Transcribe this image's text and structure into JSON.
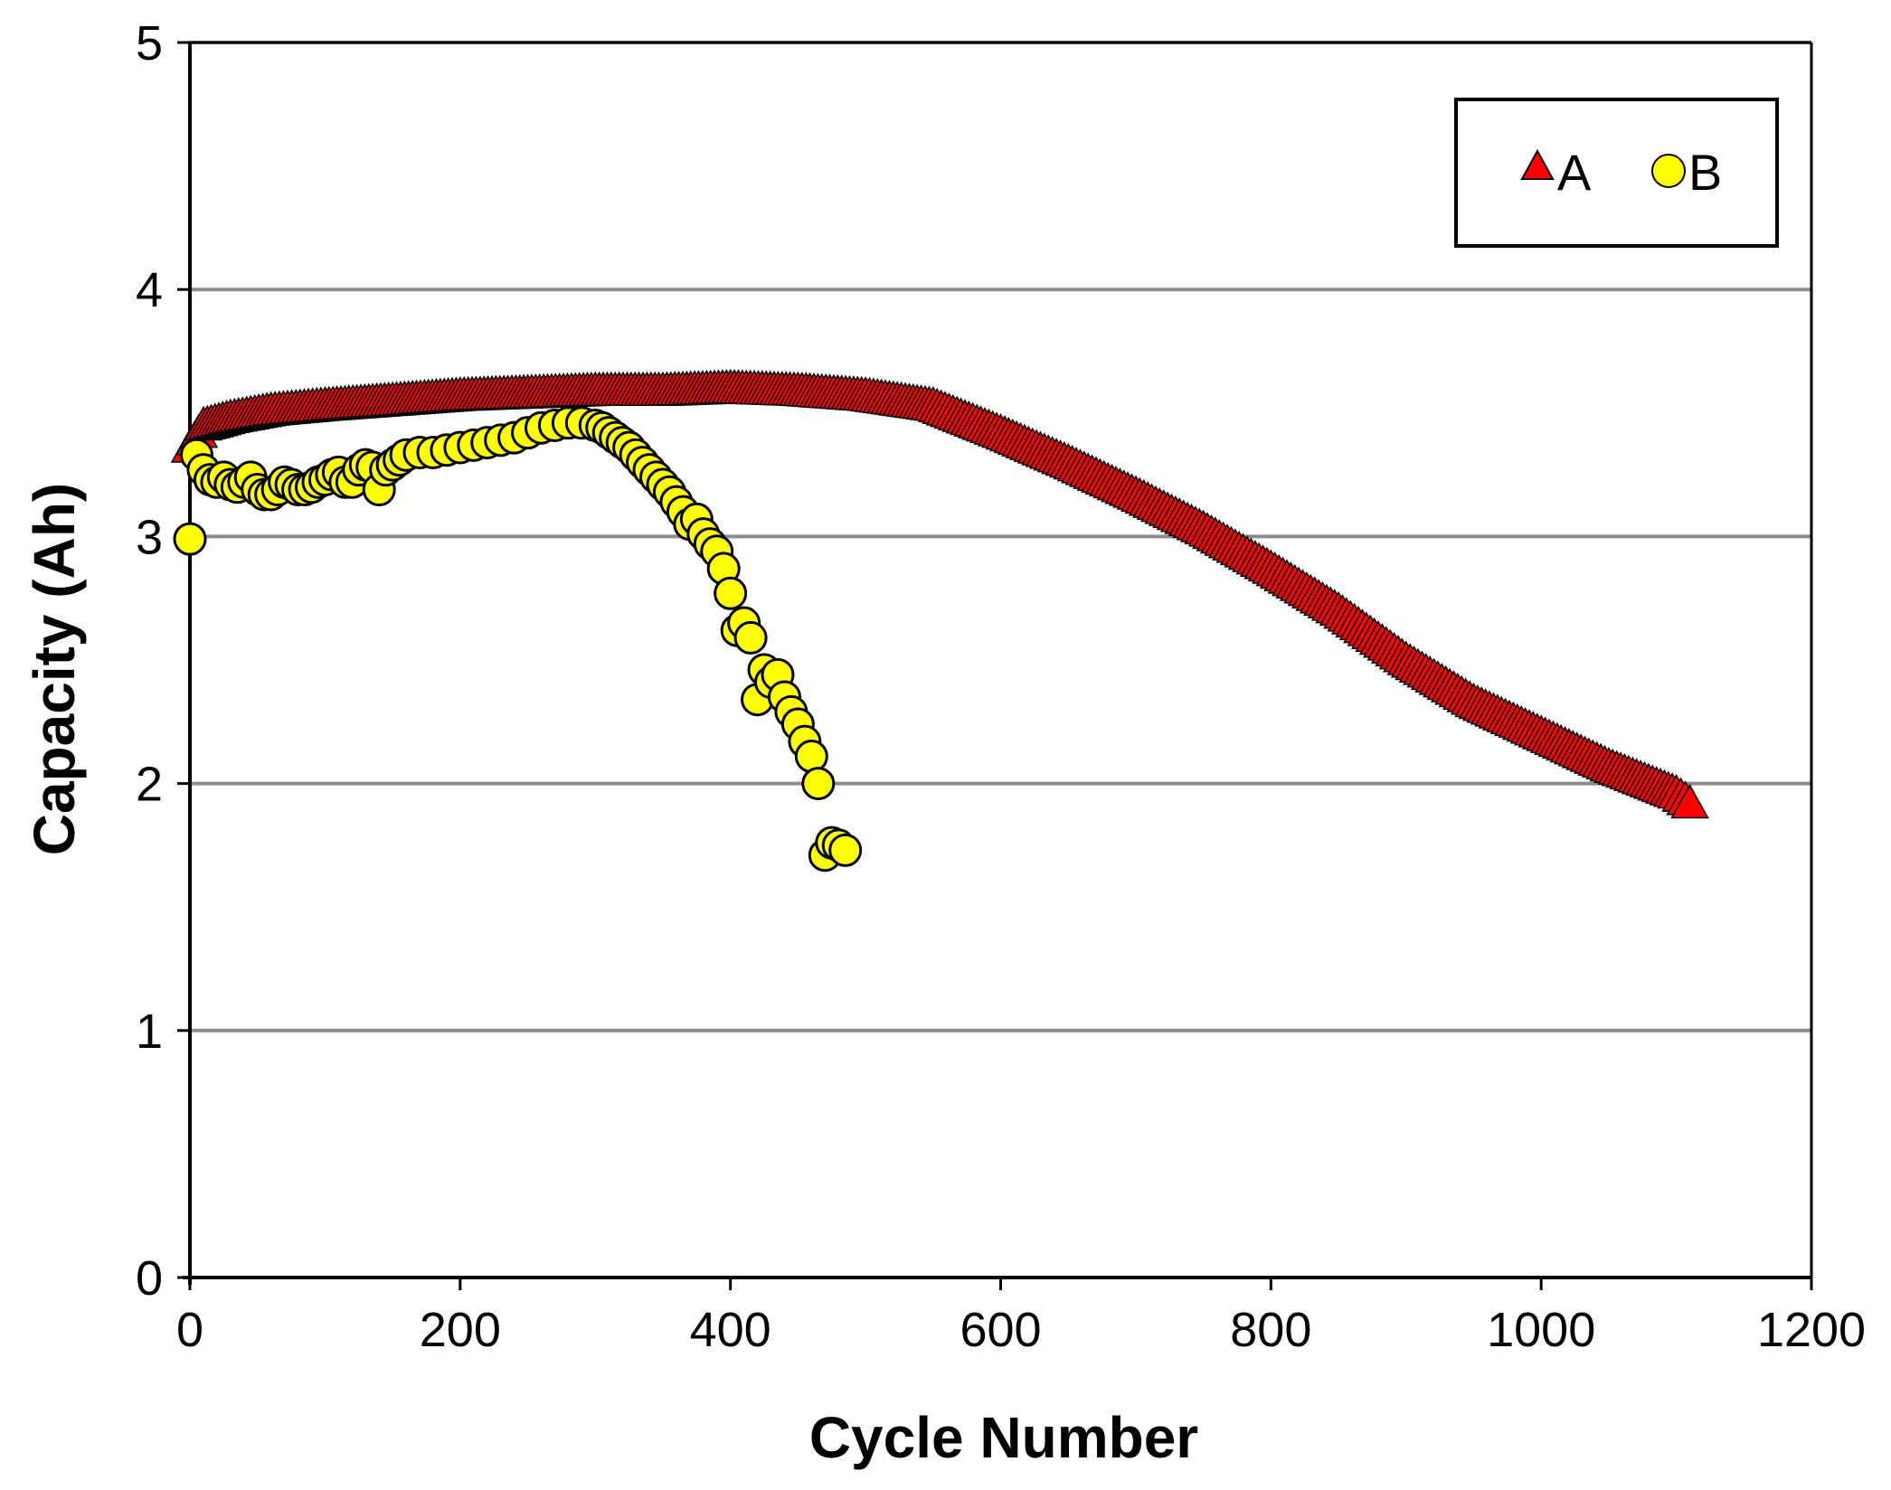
{
  "chart_data": {
    "type": "scatter",
    "title": "",
    "xlabel": "Cycle Number",
    "ylabel": "Capacity (Ah)",
    "xlim": [
      0,
      1200
    ],
    "ylim": [
      0,
      5
    ],
    "xticks": [
      0,
      200,
      400,
      600,
      800,
      1000,
      1200
    ],
    "yticks": [
      0,
      1,
      2,
      3,
      4,
      5
    ],
    "xtick_labels": [
      "0",
      "200",
      "400",
      "600",
      "800",
      "1000",
      "1200"
    ],
    "ytick_labels": [
      "0",
      "1",
      "2",
      "3",
      "4",
      "5"
    ],
    "grid": "horizontal",
    "legend_position": "top-right",
    "series": [
      {
        "name": "A",
        "marker": "triangle",
        "color": "#ff0000",
        "x": [
          0,
          10,
          30,
          60,
          100,
          150,
          200,
          250,
          300,
          350,
          400,
          450,
          500,
          550,
          600,
          650,
          700,
          750,
          800,
          850,
          900,
          950,
          1000,
          1050,
          1100,
          1110
        ],
        "y": [
          3.36,
          3.45,
          3.48,
          3.51,
          3.53,
          3.55,
          3.57,
          3.58,
          3.59,
          3.59,
          3.6,
          3.59,
          3.57,
          3.53,
          3.42,
          3.3,
          3.17,
          3.03,
          2.87,
          2.7,
          2.5,
          2.33,
          2.2,
          2.07,
          1.96,
          1.92
        ]
      },
      {
        "name": "B",
        "marker": "circle",
        "color": "#ffff00",
        "x": [
          0,
          5,
          10,
          15,
          20,
          25,
          30,
          35,
          40,
          45,
          50,
          55,
          60,
          65,
          70,
          75,
          80,
          85,
          90,
          95,
          100,
          105,
          110,
          115,
          120,
          125,
          130,
          135,
          140,
          145,
          150,
          155,
          160,
          170,
          180,
          190,
          200,
          210,
          220,
          230,
          240,
          250,
          260,
          270,
          280,
          290,
          300,
          305,
          310,
          315,
          320,
          325,
          330,
          335,
          340,
          345,
          350,
          355,
          360,
          365,
          370,
          375,
          380,
          385,
          390,
          395,
          400,
          405,
          410,
          415,
          420,
          425,
          430,
          435,
          440,
          445,
          450,
          455,
          460,
          465,
          470,
          475,
          480,
          485
        ],
        "y": [
          2.99,
          3.33,
          3.27,
          3.23,
          3.22,
          3.24,
          3.21,
          3.2,
          3.22,
          3.24,
          3.19,
          3.17,
          3.17,
          3.19,
          3.22,
          3.21,
          3.19,
          3.19,
          3.2,
          3.22,
          3.23,
          3.25,
          3.26,
          3.22,
          3.22,
          3.27,
          3.29,
          3.28,
          3.19,
          3.27,
          3.29,
          3.31,
          3.33,
          3.34,
          3.34,
          3.35,
          3.36,
          3.37,
          3.38,
          3.39,
          3.4,
          3.42,
          3.44,
          3.45,
          3.46,
          3.46,
          3.45,
          3.44,
          3.42,
          3.4,
          3.38,
          3.36,
          3.33,
          3.3,
          3.27,
          3.24,
          3.21,
          3.18,
          3.14,
          3.1,
          3.05,
          3.07,
          3.01,
          2.97,
          2.94,
          2.87,
          2.77,
          2.62,
          2.65,
          2.59,
          2.34,
          2.46,
          2.41,
          2.44,
          2.35,
          2.29,
          2.24,
          2.17,
          2.11,
          2.0,
          1.71,
          1.76,
          1.75,
          1.73
        ]
      }
    ]
  }
}
